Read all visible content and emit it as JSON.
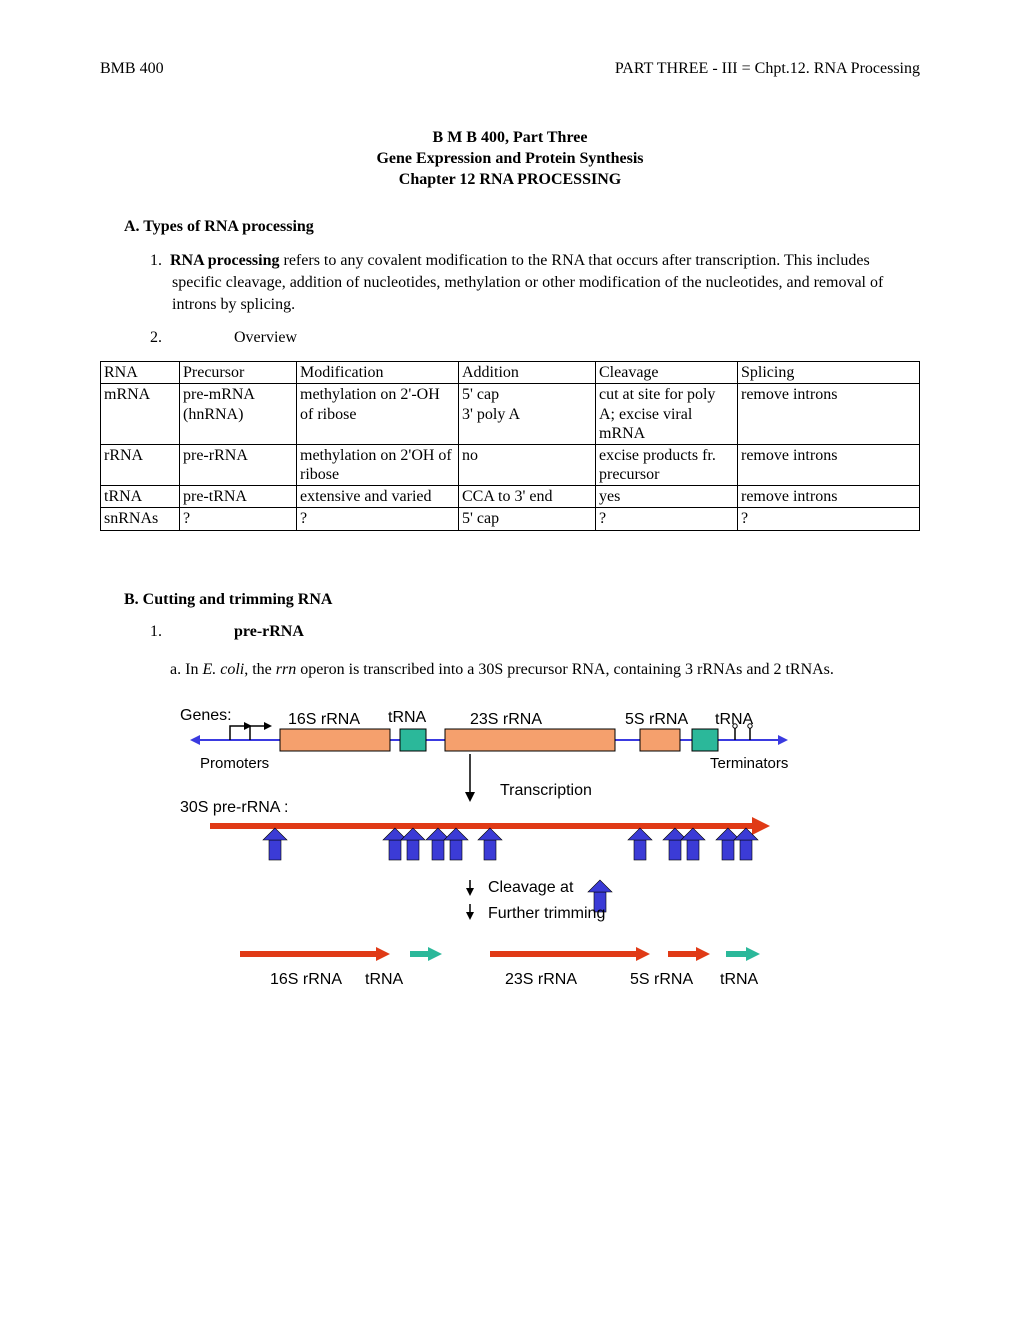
{
  "header": {
    "left": "BMB 400",
    "right": "PART THREE - III = Chpt.12. RNA Processing"
  },
  "title": {
    "line1": "B M B 400, Part Three",
    "line2": "Gene Expression and Protein Synthesis",
    "line3": "Chapter 12 RNA PROCESSING"
  },
  "sectionA": {
    "heading": "A. Types of RNA processing",
    "item1_num": "1.",
    "item1_lead": "RNA processing",
    "item1_rest": " refers to any covalent modification to the RNA that occurs after transcription.  This includes specific cleavage, addition of nucleotides, methylation or other modification of the nucleotides, and removal of introns by splicing.",
    "item2_num": "2.",
    "item2_label": "Overview"
  },
  "table": {
    "columns": [
      "RNA",
      "Precursor",
      "Modification",
      "Addition",
      "Cleavage",
      "Splicing"
    ],
    "rows": [
      [
        "mRNA",
        "pre-mRNA (hnRNA)",
        "methylation on 2'-OH of ribose",
        "5' cap\n3' poly A",
        "cut at site for poly A; excise viral mRNA",
        "remove introns"
      ],
      [
        "rRNA",
        "pre-rRNA",
        "methylation on 2'OH of ribose",
        "no",
        "excise products fr. precursor",
        "remove introns"
      ],
      [
        "tRNA",
        "pre-tRNA",
        "extensive and varied",
        "CCA to 3' end",
        "yes",
        "remove introns"
      ],
      [
        "snRNAs",
        "?",
        "?",
        "5' cap",
        "?",
        "?"
      ]
    ]
  },
  "sectionB": {
    "heading": "B. Cutting and trimming RNA",
    "item1_num": "1.",
    "item1_label": "pre-rRNA",
    "sub_a_num": "a.",
    "sub_a_pre": "In ",
    "sub_a_ecoli": "E. coli",
    "sub_a_mid": ", the ",
    "sub_a_rrn": "rrn",
    "sub_a_rest": " operon is transcribed into a 30S precursor RNA, containing 3 rRNAs and 2 tRNAs."
  },
  "diagram": {
    "labels": {
      "genes": "Genes:",
      "g16s": "16S rRNA",
      "gtRNA": "tRNA",
      "g23s": "23S rRNA",
      "g5s": "5S rRNA",
      "gtRNA2": "tRNA",
      "promoters": "Promoters",
      "terminators": "Terminators",
      "pre30s": "30S pre-rRNA :",
      "transcription": "Transcription",
      "cleavage": "Cleavage at",
      "trimming": "Further trimming",
      "p16s": "16S rRNA",
      "ptRNA": "tRNA",
      "p23s": "23S rRNA",
      "p5s": "5S rRNA",
      "ptRNA2": "tRNA"
    },
    "colors": {
      "gene_rrna_fill": "#f5a06d",
      "gene_trna_fill": "#2bb89a",
      "gene_stroke": "#000000",
      "axis_blue": "#3a3ae0",
      "pre_rna": "#e03a16",
      "cleave_arrow": "#3b3bd6",
      "product_rrna": "#e03a16",
      "product_trna": "#2bb89a",
      "text": "#000000"
    }
  }
}
